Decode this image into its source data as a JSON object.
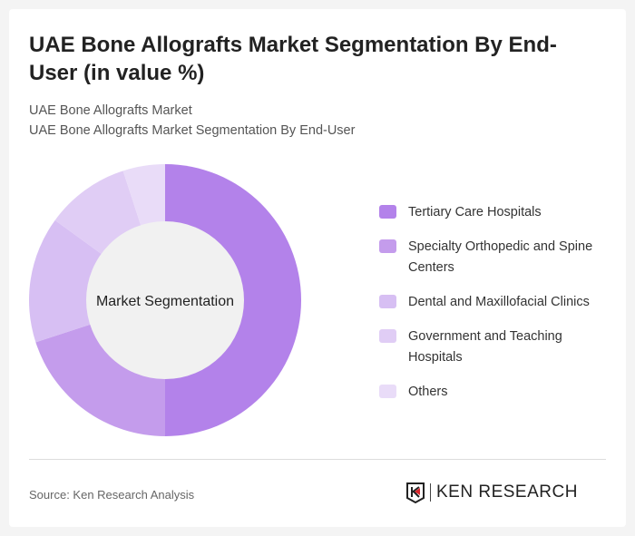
{
  "title": "UAE Bone Allografts Market Segmentation By End-User (in value %)",
  "subtitle_1": "UAE Bone Allografts Market",
  "subtitle_2": "UAE Bone Allografts Market Segmentation By End-User",
  "source": "Source: Ken Research Analysis",
  "logo_text": "KEN RESEARCH",
  "chart_data": {
    "type": "pie",
    "variant": "donut",
    "center_label": "Market Segmentation",
    "categories": [
      "Tertiary Care Hospitals",
      "Specialty Orthopedic and Spine Centers",
      "Dental and Maxillofacial Clinics",
      "Government and Teaching Hospitals",
      "Others"
    ],
    "values": [
      50,
      20,
      15,
      10,
      5
    ],
    "colors": [
      "#b382ea",
      "#c49cec",
      "#d7bff3",
      "#e0cdf5",
      "#e9dcf8"
    ],
    "legend_position": "right"
  }
}
